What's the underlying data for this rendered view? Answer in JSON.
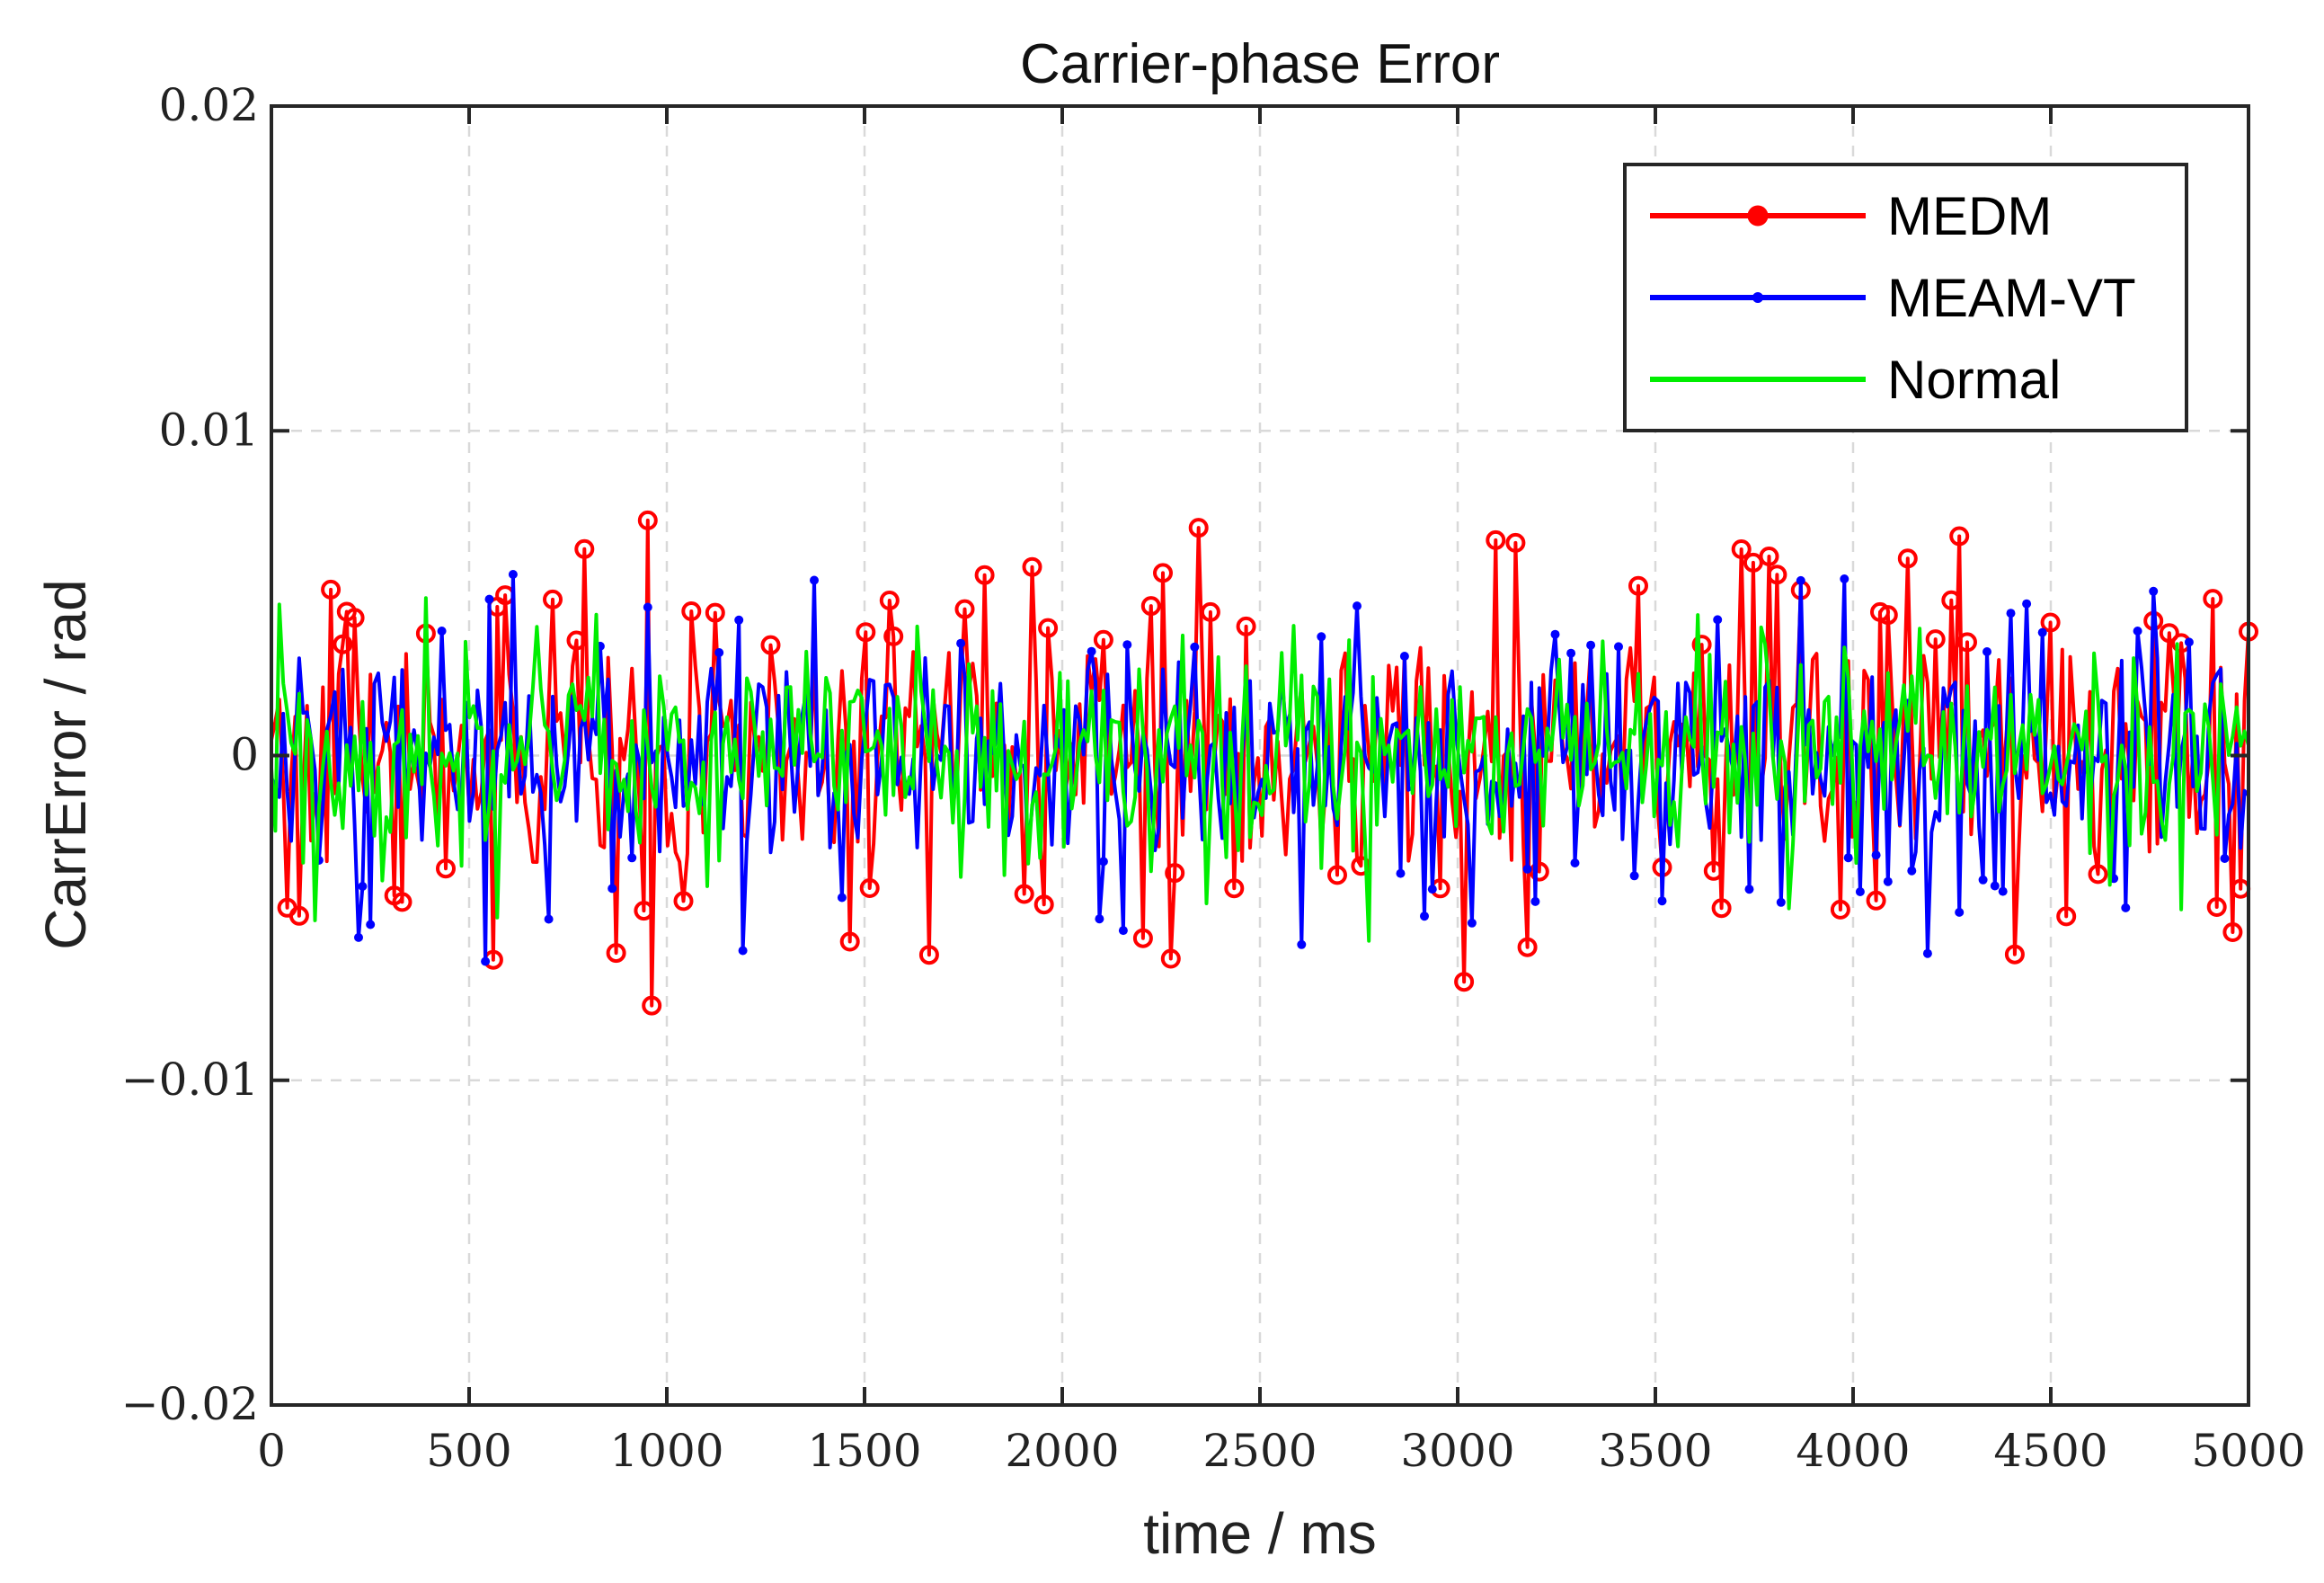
{
  "chart_data": {
    "type": "line",
    "title": "Carrier-phase Error",
    "xlabel": "time / ms",
    "ylabel": "CarrError / rad",
    "xlim": [
      0,
      5000
    ],
    "ylim": [
      -0.02,
      0.02
    ],
    "xticks": [
      0,
      500,
      1000,
      1500,
      2000,
      2500,
      3000,
      3500,
      4000,
      4500,
      5000
    ],
    "xtick_labels": [
      "0",
      "500",
      "1000",
      "1500",
      "2000",
      "2500",
      "3000",
      "3500",
      "4000",
      "4500",
      "5000"
    ],
    "yticks": [
      0.02,
      0.01,
      0,
      -0.01,
      -0.02
    ],
    "ytick_labels": [
      "0.02",
      "0.01",
      "0",
      "−0.01",
      "−0.02"
    ],
    "grid": true,
    "legend_position": "top-right",
    "series": [
      {
        "name": "MEDM",
        "color": "#ff0000",
        "marker": "circle",
        "amplitude": 0.0022,
        "spike_max": 0.009,
        "spike_min": -0.009,
        "n_points": 500
      },
      {
        "name": "MEAM-VT",
        "color": "#0000ff",
        "marker": "dot",
        "amplitude": 0.0019,
        "spike_max": 0.0071,
        "spike_min": -0.0073,
        "n_points": 500
      },
      {
        "name": "Normal",
        "color": "#00ee00",
        "marker": "none",
        "amplitude": 0.0016,
        "spike_max": 0.0065,
        "spike_min": -0.0078,
        "n_points": 500
      }
    ]
  }
}
